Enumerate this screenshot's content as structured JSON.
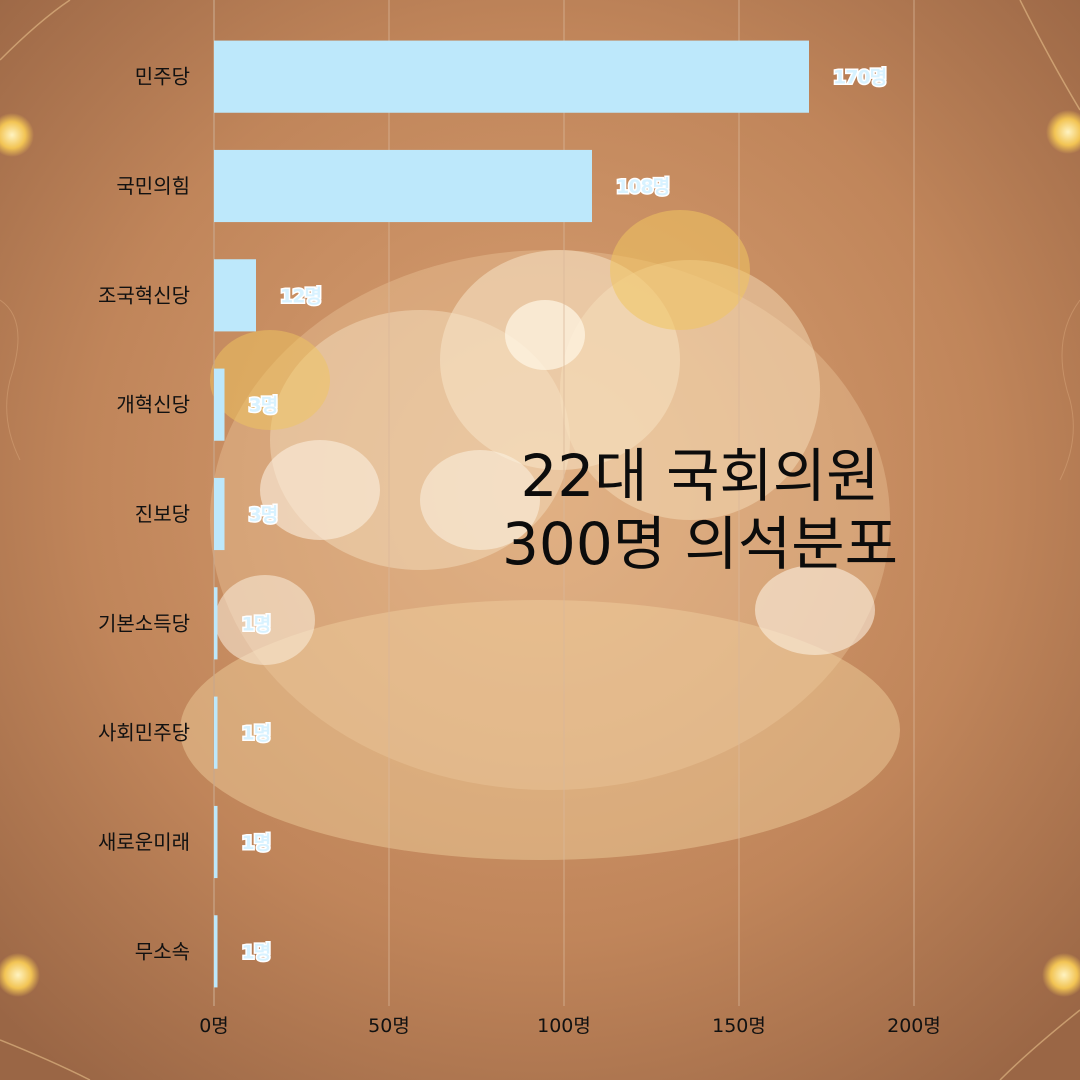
{
  "chart_data": {
    "type": "bar",
    "orientation": "horizontal",
    "title_lines": [
      "22대 국회의원",
      "300명 의석분포"
    ],
    "categories": [
      "민주당",
      "국민의힘",
      "조국혁신당",
      "개혁신당",
      "진보당",
      "기본소득당",
      "사회민주당",
      "새로운미래",
      "무소속"
    ],
    "values": [
      170,
      108,
      12,
      3,
      3,
      1,
      1,
      1,
      1
    ],
    "data_labels": [
      "170명",
      "108명",
      "12명",
      "3명",
      "3명",
      "1명",
      "1명",
      "1명",
      "1명"
    ],
    "x_ticks": [
      0,
      50,
      100,
      150,
      200
    ],
    "x_tick_labels": [
      "0명",
      "50명",
      "100명",
      "150명",
      "200명"
    ],
    "xlim": [
      0,
      200
    ],
    "grid": "vertical",
    "legend": "none",
    "colors": {
      "bar": "#bde8fb",
      "background": "#c48a5e"
    }
  }
}
